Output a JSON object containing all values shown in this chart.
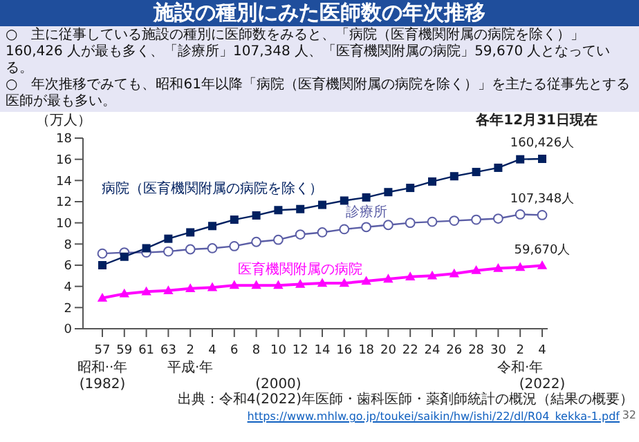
{
  "chart_data": {
    "type": "line",
    "title": "施設の種別にみた医師数の年次推移",
    "subtitle": "○　主に従事している施設の種別に医師数をみると、「病院（医育機関附属の病院を除く）」160,426 人が最も多く、「診療所」107,348 人、「医育機関附属の病院」59,670 人となっている。\n○　年次推移でみても、昭和61年以降「病院（医育機関附属の病院を除く）」を主たる従事先とする医師が最も多い。",
    "ylabel": "（万人）",
    "categories": [
      "57",
      "59",
      "61",
      "63",
      "2",
      "4",
      "6",
      "8",
      "10",
      "12",
      "14",
      "16",
      "18",
      "20",
      "22",
      "24",
      "26",
      "28",
      "30",
      "2",
      "4"
    ],
    "series": [
      {
        "name": "病院（医育機関附属の病院を除く）",
        "color": "#002060",
        "marker": "square",
        "values": [
          6.0,
          6.8,
          7.6,
          8.5,
          9.1,
          9.7,
          10.3,
          10.7,
          11.2,
          11.3,
          11.7,
          12.1,
          12.4,
          12.9,
          13.3,
          13.9,
          14.4,
          14.8,
          15.2,
          16.0,
          16.0426
        ]
      },
      {
        "name": "診療所",
        "color": "#5b5ea6",
        "marker": "circle",
        "values": [
          7.1,
          7.2,
          7.2,
          7.3,
          7.5,
          7.6,
          7.8,
          8.2,
          8.4,
          8.9,
          9.1,
          9.4,
          9.6,
          9.8,
          10.0,
          10.1,
          10.2,
          10.3,
          10.4,
          10.8,
          10.7348
        ]
      },
      {
        "name": "医育機関附属の病院",
        "color": "#ff00ff",
        "marker": "triangle",
        "values": [
          2.9,
          3.3,
          3.5,
          3.6,
          3.8,
          3.9,
          4.1,
          4.1,
          4.1,
          4.2,
          4.3,
          4.3,
          4.5,
          4.7,
          4.9,
          5.0,
          5.2,
          5.5,
          5.7,
          5.8,
          5.967
        ]
      }
    ],
    "ylim": [
      0,
      18
    ],
    "yticks": [
      0,
      2,
      4,
      6,
      8,
      10,
      12,
      14,
      16,
      18
    ],
    "annotations": [
      "各年12月31日現在",
      "昭和··年",
      "平成·年",
      "令和·年",
      "(1982)",
      "(2000)",
      "(2022)",
      "出典：令和4(2022)年医師・歯科医師・薬剤師統計の概況（結果の概要）",
      "https://www.mhlw.go.jp/toukei/saikin/hw/ishi/22/dl/R04_kekka-1.pdf",
      "32",
      "160,426人",
      "107,348人",
      "59,670人"
    ]
  }
}
